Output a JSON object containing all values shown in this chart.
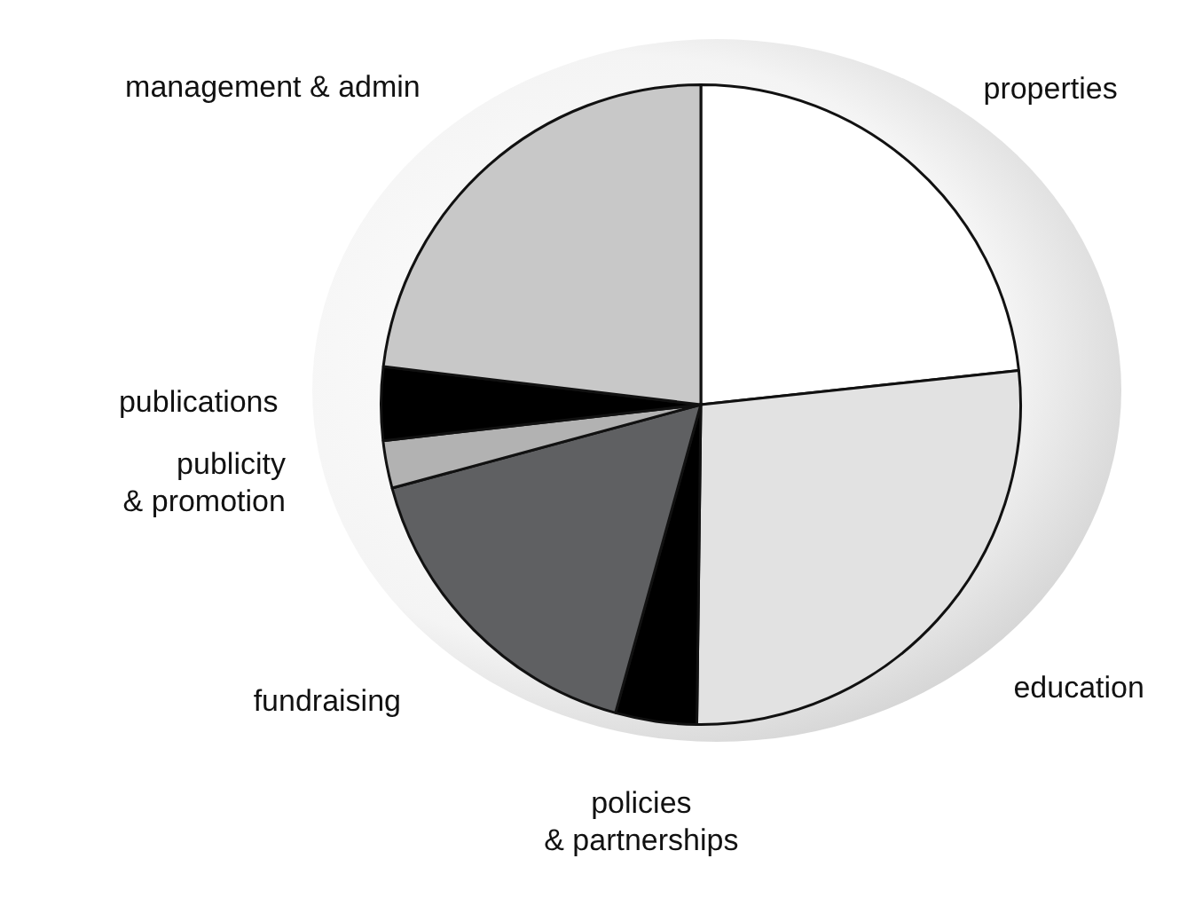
{
  "chart_data": {
    "type": "pie",
    "categories": [
      "properties",
      "education",
      "policies\n& partnerships",
      "fundraising",
      "publicity\n& promotion",
      "publications",
      "management & admin"
    ],
    "values": [
      23.3,
      26.9,
      4.1,
      16.5,
      2.4,
      3.7,
      23.1
    ],
    "colors": [
      "#ffffff",
      "#e2e2e2",
      "#000000",
      "#5f6062",
      "#b2b2b2",
      "#000000",
      "#c8c8c8"
    ],
    "legend": false
  }
}
